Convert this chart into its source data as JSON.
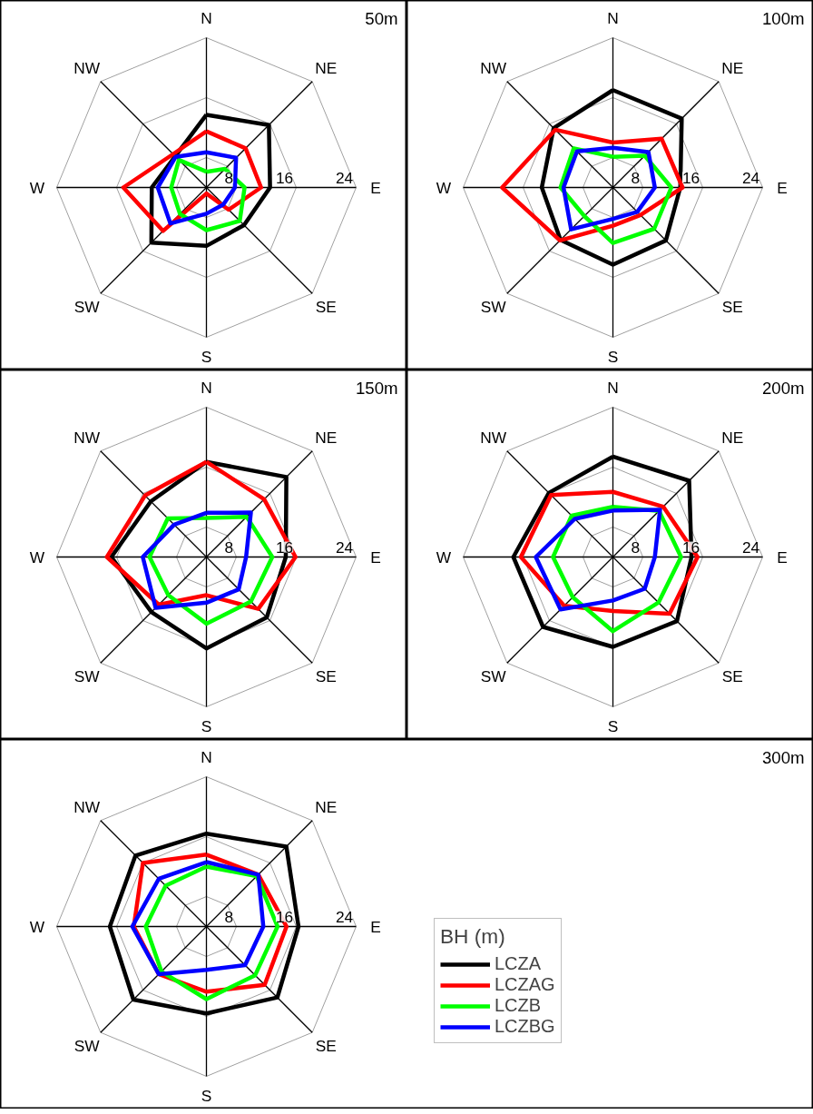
{
  "chart_data": [
    {
      "type": "radar",
      "title": "50m",
      "categories": [
        "N",
        "NE",
        "E",
        "SE",
        "S",
        "SW",
        "W",
        "NW"
      ],
      "ylim": [
        4,
        24
      ],
      "yticks": [
        8,
        16,
        24
      ],
      "grid": true,
      "series": [
        {
          "color": "#000000",
          "values": [
            13.7,
            15.8,
            12.5,
            11.1,
            11.8,
            14.4,
            11.3,
            9.9
          ]
        },
        {
          "color": "#ff0000",
          "values": [
            11.5,
            11.4,
            11.3,
            8.2,
            4.8,
            12.2,
            15.1,
            10.3
          ]
        },
        {
          "color": "#00ff00",
          "values": [
            6.1,
            7.5,
            9.1,
            10.3,
            9.7,
            9.0,
            8.7,
            9.2
          ]
        },
        {
          "color": "#0000ff",
          "values": [
            8.7,
            9.6,
            7.8,
            7.2,
            7.5,
            10.8,
            10.5,
            9.8
          ]
        }
      ]
    },
    {
      "type": "radar",
      "title": "100m",
      "categories": [
        "N",
        "NE",
        "E",
        "SE",
        "S",
        "SW",
        "W",
        "NW"
      ],
      "ylim": [
        4,
        24
      ],
      "yticks": [
        8,
        16,
        24
      ],
      "grid": true,
      "series": [
        {
          "color": "#000000",
          "values": [
            17.0,
            17.0,
            13.0,
            14.0,
            14.3,
            13.9,
            13.5,
            15.2
          ]
        },
        {
          "color": "#ff0000",
          "values": [
            10.0,
            13.2,
            13.3,
            9.2,
            9.1,
            14.0,
            18.8,
            14.9
          ]
        },
        {
          "color": "#00ff00",
          "values": [
            8.1,
            10.0,
            11.8,
            11.8,
            11.4,
            9.4,
            11.0,
            11.4
          ]
        },
        {
          "color": "#0000ff",
          "values": [
            9.3,
            10.7,
            9.6,
            8.6,
            8.2,
            11.9,
            10.6,
            10.8
          ]
        }
      ]
    },
    {
      "type": "radar",
      "title": "150m",
      "categories": [
        "N",
        "NE",
        "E",
        "SE",
        "S",
        "SW",
        "W",
        "NW"
      ],
      "ylim": [
        4,
        24
      ],
      "yticks": [
        8,
        16,
        24
      ],
      "grid": true,
      "series": [
        {
          "color": "#000000",
          "values": [
            16.7,
            19.1,
            14.6,
            15.4,
            16.2,
            14.4,
            16.7,
            14.5
          ]
        },
        {
          "color": "#ff0000",
          "values": [
            16.7,
            14.9,
            15.9,
            13.8,
            9.1,
            13.0,
            17.3,
            15.6
          ]
        },
        {
          "color": "#00ff00",
          "values": [
            9.2,
            11.6,
            12.8,
            12.4,
            12.9,
            11.2,
            11.6,
            11.3
          ]
        },
        {
          "color": "#0000ff",
          "values": [
            9.9,
            12.4,
            9.3,
            10.1,
            10.1,
            13.6,
            12.5,
            10.1
          ]
        }
      ]
    },
    {
      "type": "radar",
      "title": "200m",
      "categories": [
        "N",
        "NE",
        "E",
        "SE",
        "S",
        "SW",
        "W",
        "NW"
      ],
      "ylim": [
        4,
        24
      ],
      "yticks": [
        8,
        16,
        24
      ],
      "grid": true,
      "series": [
        {
          "color": "#000000",
          "values": [
            17.4,
            18.4,
            14.5,
            16.1,
            16.0,
            17.2,
            17.3,
            16.1
          ]
        },
        {
          "color": "#ff0000",
          "values": [
            12.7,
            13.5,
            15.3,
            14.7,
            11.2,
            13.2,
            16.3,
            15.7
          ]
        },
        {
          "color": "#00ff00",
          "values": [
            10.7,
            12.7,
            13.1,
            12.6,
            13.9,
            11.6,
            12.0,
            11.8
          ]
        },
        {
          "color": "#0000ff",
          "values": [
            10.2,
            12.9,
            9.6,
            10.0,
            9.8,
            13.9,
            14.3,
            11.2
          ]
        }
      ]
    },
    {
      "type": "radar",
      "title": "300m",
      "categories": [
        "N",
        "NE",
        "E",
        "SE",
        "S",
        "SW",
        "W",
        "NW"
      ],
      "ylim": [
        4,
        24
      ],
      "yticks": [
        8,
        16,
        24
      ],
      "grid": true,
      "legend": "right",
      "legend_title": "BH (m)",
      "series": [
        {
          "name": "LCZA",
          "color": "#000000",
          "values": [
            16.4,
            19.1,
            16.3,
            17.4,
            15.6,
            17.8,
            16.9,
            17.4
          ]
        },
        {
          "name": "LCZAG",
          "color": "#ff0000",
          "values": [
            13.6,
            13.8,
            14.7,
            15.0,
            12.7,
            13.0,
            13.7,
            16.0
          ]
        },
        {
          "name": "LCZB",
          "color": "#00ff00",
          "values": [
            12.0,
            13.5,
            13.5,
            13.2,
            13.7,
            12.5,
            12.1,
            11.7
          ]
        },
        {
          "name": "LCZBG",
          "color": "#0000ff",
          "values": [
            12.6,
            13.8,
            11.6,
            11.3,
            9.8,
            13.0,
            13.9,
            13.0
          ]
        }
      ]
    }
  ]
}
